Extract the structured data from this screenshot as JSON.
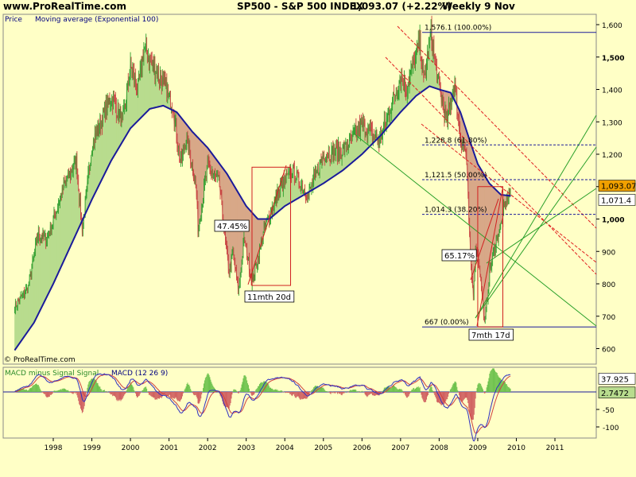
{
  "header": {
    "site": "www.ProRealTime.com",
    "instrument": "SP500 - S&P 500 INDEX",
    "last": "1,093.07 (+2.22%)",
    "period": "Weekly  9 Nov"
  },
  "price_panel": {
    "legend_price": "Price",
    "legend_ma": "Moving average (Exponential 100)",
    "watermark": "© ProRealTime.com"
  },
  "macd_panel": {
    "legend_a": "MACD minus Signal Signal",
    "legend_b": "MACD (12 26 9)"
  },
  "colors": {
    "background": "#FFFFC6",
    "bull_candle": "#2E9E2E",
    "bear_candle": "#C84040",
    "ma_line": "#1A1A9A",
    "green_fill": "#B8DC8E",
    "red_fill": "#D8A888",
    "fib_line": "#1A1A9A",
    "channel_red": "#E02020",
    "trend_green": "#2AA02A",
    "box": "#D02020",
    "last_badge": "#F0A000"
  },
  "annotations": {
    "drop1_pct": "47.45%",
    "rise1_duration": "11mth 20d",
    "drop2_pct": "65.17%",
    "rise2_duration": "7mth 17d"
  },
  "chart_data": [
    {
      "type": "candlestick",
      "title": "SP500 - S&P 500 INDEX",
      "frequency": "weekly",
      "x_ticks": [
        "1998",
        "1999",
        "2000",
        "2001",
        "2002",
        "2003",
        "2004",
        "2005",
        "2006",
        "2007",
        "2008",
        "2009",
        "2010",
        "2011"
      ],
      "y_ticks": [
        "1,600",
        "1,500",
        "1,400",
        "1,300",
        "1,200",
        "1,100",
        "1,000",
        "900",
        "800",
        "700",
        "600"
      ],
      "ylim": [
        570,
        1620
      ],
      "y_scale": "linear",
      "grid": false,
      "price_anchors": [
        {
          "t": 1997.0,
          "v": 730
        },
        {
          "t": 1997.35,
          "v": 790
        },
        {
          "t": 1997.6,
          "v": 950
        },
        {
          "t": 1997.85,
          "v": 940
        },
        {
          "t": 1998.3,
          "v": 1110
        },
        {
          "t": 1998.6,
          "v": 1180
        },
        {
          "t": 1998.75,
          "v": 960
        },
        {
          "t": 1999.0,
          "v": 1230
        },
        {
          "t": 1999.5,
          "v": 1380
        },
        {
          "t": 1999.8,
          "v": 1300
        },
        {
          "t": 2000.0,
          "v": 1470
        },
        {
          "t": 2000.2,
          "v": 1400
        },
        {
          "t": 2000.35,
          "v": 1527
        },
        {
          "t": 2000.6,
          "v": 1470
        },
        {
          "t": 2000.8,
          "v": 1430
        },
        {
          "t": 2001.1,
          "v": 1350
        },
        {
          "t": 2001.2,
          "v": 1260
        },
        {
          "t": 2001.3,
          "v": 1170
        },
        {
          "t": 2001.45,
          "v": 1250
        },
        {
          "t": 2001.7,
          "v": 1100
        },
        {
          "t": 2001.75,
          "v": 970
        },
        {
          "t": 2002.0,
          "v": 1160
        },
        {
          "t": 2002.3,
          "v": 1110
        },
        {
          "t": 2002.55,
          "v": 830
        },
        {
          "t": 2002.65,
          "v": 900
        },
        {
          "t": 2002.8,
          "v": 775
        },
        {
          "t": 2002.95,
          "v": 940
        },
        {
          "t": 2003.15,
          "v": 800
        },
        {
          "t": 2003.5,
          "v": 980
        },
        {
          "t": 2003.9,
          "v": 1100
        },
        {
          "t": 2004.2,
          "v": 1150
        },
        {
          "t": 2004.6,
          "v": 1070
        },
        {
          "t": 2005.0,
          "v": 1200
        },
        {
          "t": 2005.5,
          "v": 1210
        },
        {
          "t": 2006.0,
          "v": 1290
        },
        {
          "t": 2006.45,
          "v": 1240
        },
        {
          "t": 2007.0,
          "v": 1440
        },
        {
          "t": 2007.15,
          "v": 1400
        },
        {
          "t": 2007.5,
          "v": 1550
        },
        {
          "t": 2007.6,
          "v": 1420
        },
        {
          "t": 2007.78,
          "v": 1576
        },
        {
          "t": 2008.0,
          "v": 1400
        },
        {
          "t": 2008.2,
          "v": 1300
        },
        {
          "t": 2008.4,
          "v": 1420
        },
        {
          "t": 2008.55,
          "v": 1250
        },
        {
          "t": 2008.7,
          "v": 1200
        },
        {
          "t": 2008.8,
          "v": 900
        },
        {
          "t": 2008.88,
          "v": 760
        },
        {
          "t": 2008.95,
          "v": 920
        },
        {
          "t": 2009.05,
          "v": 850
        },
        {
          "t": 2009.18,
          "v": 667
        },
        {
          "t": 2009.3,
          "v": 830
        },
        {
          "t": 2009.45,
          "v": 920
        },
        {
          "t": 2009.6,
          "v": 980
        },
        {
          "t": 2009.7,
          "v": 1040
        },
        {
          "t": 2009.78,
          "v": 1070
        },
        {
          "t": 2009.86,
          "v": 1093.07
        }
      ],
      "moving_average": {
        "name": "Moving average (Exponential 100)",
        "points": [
          {
            "t": 1997.0,
            "v": 595
          },
          {
            "t": 1997.5,
            "v": 680
          },
          {
            "t": 1998.0,
            "v": 800
          },
          {
            "t": 1998.5,
            "v": 930
          },
          {
            "t": 1999.0,
            "v": 1060
          },
          {
            "t": 1999.5,
            "v": 1180
          },
          {
            "t": 2000.0,
            "v": 1280
          },
          {
            "t": 2000.5,
            "v": 1340
          },
          {
            "t": 2000.85,
            "v": 1350
          },
          {
            "t": 2001.2,
            "v": 1330
          },
          {
            "t": 2001.6,
            "v": 1270
          },
          {
            "t": 2002.0,
            "v": 1220
          },
          {
            "t": 2002.5,
            "v": 1140
          },
          {
            "t": 2003.0,
            "v": 1040
          },
          {
            "t": 2003.3,
            "v": 1000
          },
          {
            "t": 2003.6,
            "v": 1000
          },
          {
            "t": 2004.0,
            "v": 1040
          },
          {
            "t": 2004.5,
            "v": 1075
          },
          {
            "t": 2005.0,
            "v": 1110
          },
          {
            "t": 2005.5,
            "v": 1150
          },
          {
            "t": 2006.0,
            "v": 1200
          },
          {
            "t": 2006.5,
            "v": 1260
          },
          {
            "t": 2007.0,
            "v": 1330
          },
          {
            "t": 2007.4,
            "v": 1380
          },
          {
            "t": 2007.75,
            "v": 1410
          },
          {
            "t": 2008.0,
            "v": 1400
          },
          {
            "t": 2008.3,
            "v": 1390
          },
          {
            "t": 2008.55,
            "v": 1330
          },
          {
            "t": 2008.8,
            "v": 1240
          },
          {
            "t": 2009.0,
            "v": 1170
          },
          {
            "t": 2009.3,
            "v": 1110
          },
          {
            "t": 2009.6,
            "v": 1075
          },
          {
            "t": 2009.86,
            "v": 1071.4
          }
        ],
        "last_label": "1,071.4"
      },
      "last_price_label": "1,093.07",
      "fibonacci": [
        {
          "level": 1576.1,
          "label": "1,576.1 (100.00%)"
        },
        {
          "level": 1228.8,
          "label": "1,228.8 (61.80%)"
        },
        {
          "level": 1121.5,
          "label": "1,121.5 (50.00%)"
        },
        {
          "level": 1014.3,
          "label": "1,014.3 (38.20%)"
        },
        {
          "level": 667,
          "label": "667 (0.00%)"
        }
      ],
      "annotation_boxes": [
        {
          "t0": 2003.15,
          "t1": 2004.15,
          "v0": 795,
          "v1": 1160
        },
        {
          "t0": 2009.0,
          "t1": 2009.65,
          "v0": 667,
          "v1": 1100
        }
      ]
    },
    {
      "type": "line",
      "title": "MACD (12 26 9)",
      "series": [
        {
          "name": "MACD (12 26 9)"
        },
        {
          "name": "MACD minus Signal Signal"
        }
      ],
      "y_ticks": [
        "-50",
        "-100"
      ],
      "ylim": [
        -120,
        45
      ],
      "last_values": [
        "37.925",
        "2.7472"
      ],
      "grid": false
    }
  ]
}
